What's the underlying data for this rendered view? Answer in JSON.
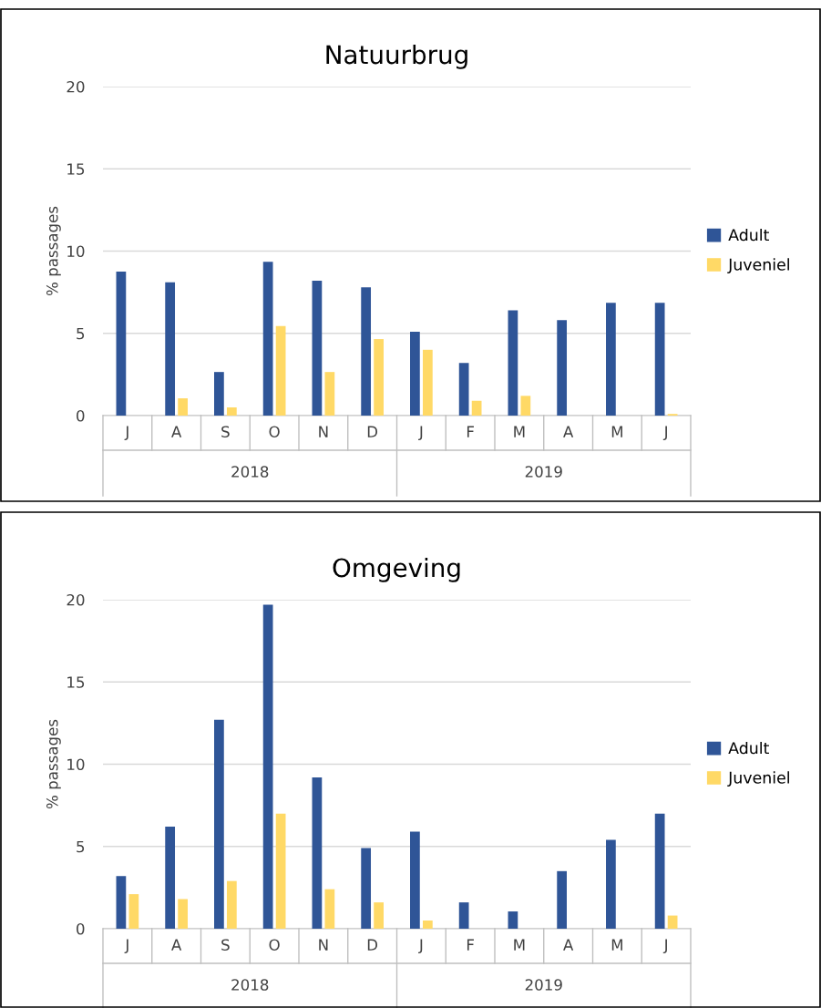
{
  "chart_data": [
    {
      "type": "bar",
      "title": "Natuurbrug",
      "ylabel": "% passages",
      "categories": [
        "J",
        "A",
        "S",
        "O",
        "N",
        "D",
        "J",
        "F",
        "M",
        "A",
        "M",
        "J"
      ],
      "annotations": [
        "2018",
        "2019"
      ],
      "series": [
        {
          "name": "Adult",
          "color": "#2f5597",
          "values": [
            8.75,
            8.1,
            2.65,
            9.35,
            8.2,
            7.8,
            5.1,
            3.2,
            6.4,
            5.8,
            6.85,
            6.85
          ]
        },
        {
          "name": "Juveniel",
          "color": "#ffd966",
          "values": [
            0,
            1.05,
            0.5,
            5.45,
            2.65,
            4.65,
            4.0,
            0.9,
            1.2,
            0,
            0,
            0.1
          ]
        }
      ],
      "ylim": [
        0,
        20
      ],
      "yticks": [
        0,
        5,
        10,
        15,
        20
      ],
      "grid": "y",
      "legend": "right"
    },
    {
      "type": "bar",
      "title": "Omgeving",
      "ylabel": "% passages",
      "categories": [
        "J",
        "A",
        "S",
        "O",
        "N",
        "D",
        "J",
        "F",
        "M",
        "A",
        "M",
        "J"
      ],
      "annotations": [
        "2018",
        "2019"
      ],
      "series": [
        {
          "name": "Adult",
          "color": "#2f5597",
          "values": [
            3.2,
            6.2,
            12.7,
            19.7,
            9.2,
            4.9,
            5.9,
            1.6,
            1.05,
            3.5,
            5.4,
            7.0
          ]
        },
        {
          "name": "Juveniel",
          "color": "#ffd966",
          "values": [
            2.1,
            1.8,
            2.9,
            7.0,
            2.4,
            1.6,
            0.5,
            0,
            0,
            0,
            0,
            0.8
          ]
        }
      ],
      "ylim": [
        0,
        20
      ],
      "yticks": [
        0,
        5,
        10,
        15,
        20
      ],
      "grid": "y",
      "legend": "right"
    }
  ]
}
